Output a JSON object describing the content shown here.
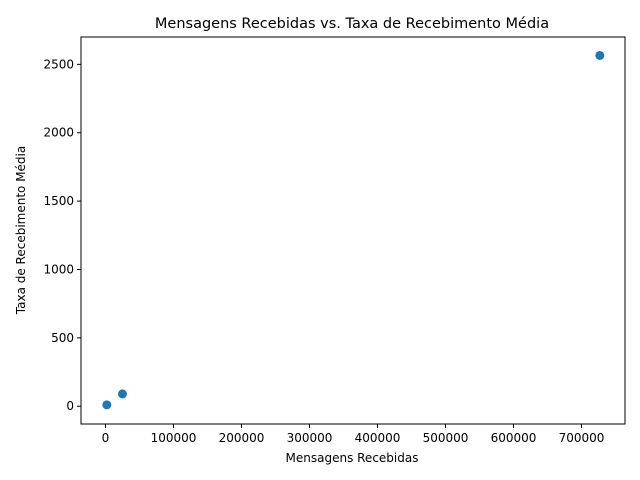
{
  "chart_data": {
    "type": "scatter",
    "title": "Mensagens Recebidas vs. Taxa de Recebimento Média",
    "xlabel": "Mensagens Recebidas",
    "ylabel": "Taxa de Recebimento Média",
    "xlim": [
      -36000,
      764000
    ],
    "ylim": [
      -130,
      2700
    ],
    "x_ticks": [
      0,
      100000,
      200000,
      300000,
      400000,
      500000,
      600000,
      700000
    ],
    "y_ticks": [
      0,
      500,
      1000,
      1500,
      2000,
      2500
    ],
    "grid": false,
    "legend": "none",
    "marker_color": "#1f77b4",
    "points": [
      {
        "x": 2000,
        "y": 10
      },
      {
        "x": 25000,
        "y": 90
      },
      {
        "x": 727000,
        "y": 2565
      }
    ]
  }
}
